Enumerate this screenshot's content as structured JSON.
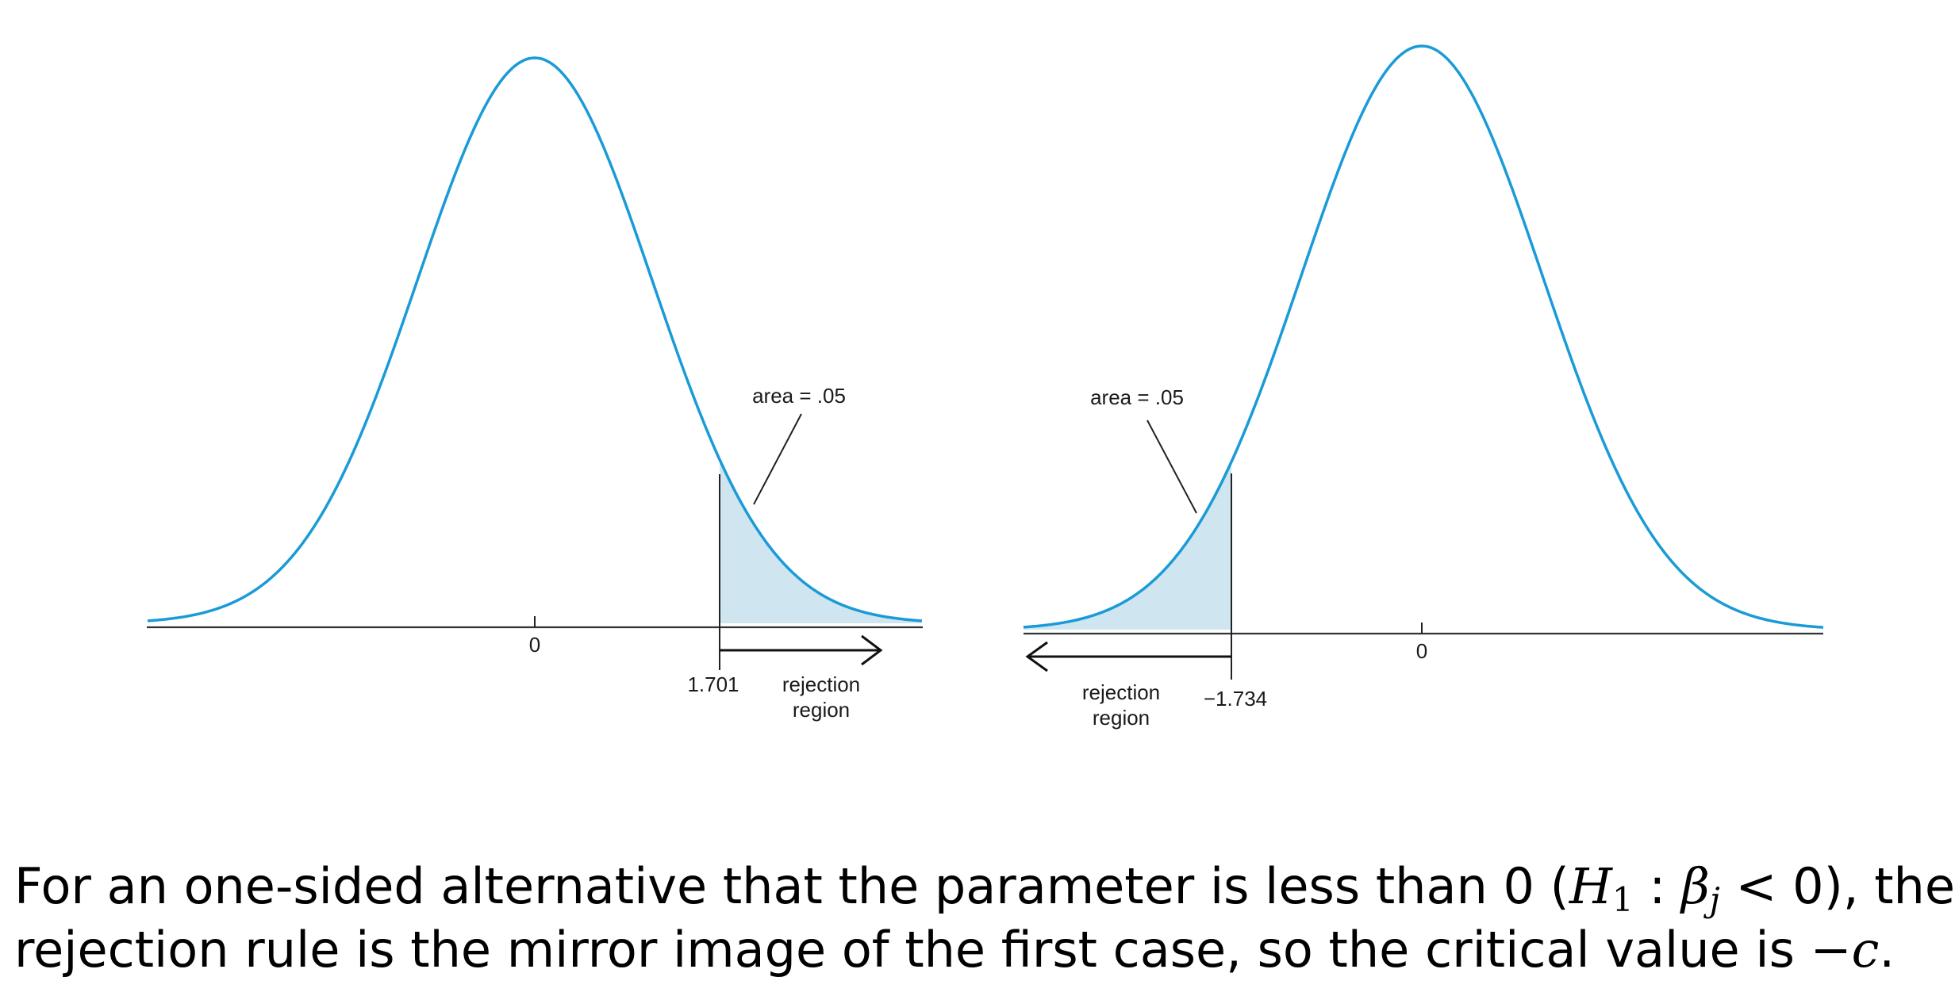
{
  "left_panel": {
    "tick_zero": "0",
    "critical_value": "1.701",
    "area_label": "area = .05",
    "region_label_line1": "rejection",
    "region_label_line2": "region"
  },
  "right_panel": {
    "tick_zero": "0",
    "critical_value": "−1.734",
    "area_label": "area = .05",
    "region_label_line1": "rejection",
    "region_label_line2": "region"
  },
  "caption": {
    "line1_text": "For an one-sided alternative that the parameter is less than 0 (",
    "h_symbol": "H",
    "h_subscript": "1",
    "colon": " : ",
    "beta_symbol": "β",
    "beta_subscript": "j",
    "inequality": " < 0",
    "line1_end": "), the",
    "line2_text": "rejection rule is the mirror image of the first case, so the critical value is ",
    "neg_c": "−c",
    "line2_end": "."
  },
  "colors": {
    "curve": "#1a9bd7",
    "rejection_fill": "#cfe5f0"
  }
}
